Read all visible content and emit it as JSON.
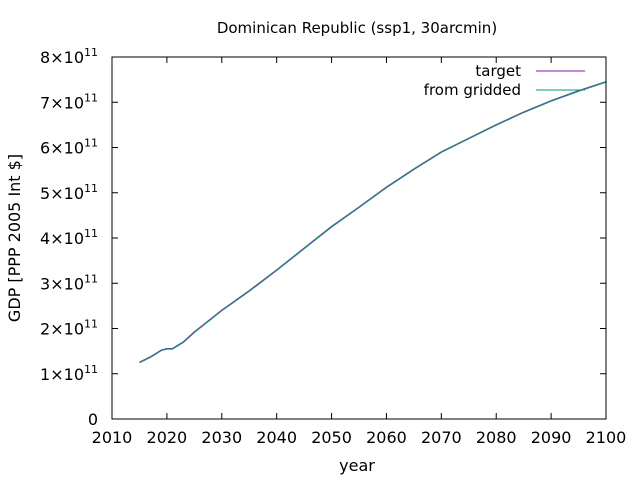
{
  "chart_data": {
    "type": "line",
    "title": "Dominican Republic (ssp1, 30arcmin)",
    "xlabel": "year",
    "ylabel": "GDP [PPP 2005 Int $]",
    "xlim": [
      2010,
      2100
    ],
    "ylim": [
      0,
      800000000000
    ],
    "x_ticks": [
      2010,
      2020,
      2030,
      2040,
      2050,
      2060,
      2070,
      2080,
      2090,
      2100
    ],
    "y_ticks": [
      {
        "value": 0,
        "label": "0",
        "exp": ""
      },
      {
        "value": 100000000000,
        "label": "1×10",
        "exp": "11"
      },
      {
        "value": 200000000000,
        "label": "2×10",
        "exp": "11"
      },
      {
        "value": 300000000000,
        "label": "3×10",
        "exp": "11"
      },
      {
        "value": 400000000000,
        "label": "4×10",
        "exp": "11"
      },
      {
        "value": 500000000000,
        "label": "5×10",
        "exp": "11"
      },
      {
        "value": 600000000000,
        "label": "6×10",
        "exp": "11"
      },
      {
        "value": 700000000000,
        "label": "7×10",
        "exp": "11"
      },
      {
        "value": 800000000000,
        "label": "8×10",
        "exp": "11"
      }
    ],
    "grid": false,
    "legend_position": "top-right",
    "x": [
      2015,
      2017,
      2019,
      2020,
      2021,
      2023,
      2025,
      2030,
      2035,
      2040,
      2045,
      2050,
      2055,
      2060,
      2065,
      2070,
      2075,
      2080,
      2085,
      2090,
      2095,
      2100
    ],
    "series": [
      {
        "name": "target",
        "color": "#8b1ab0",
        "values": [
          125000000000,
          137000000000,
          152000000000,
          155000000000,
          155000000000,
          170000000000,
          192000000000,
          240000000000,
          283000000000,
          329000000000,
          377000000000,
          425000000000,
          468000000000,
          512000000000,
          552000000000,
          590000000000,
          620000000000,
          650000000000,
          678000000000,
          703000000000,
          725000000000,
          745000000000
        ]
      },
      {
        "name": "from gridded",
        "color": "#009e73",
        "values": [
          125000000000,
          137000000000,
          152000000000,
          155000000000,
          155000000000,
          170000000000,
          192000000000,
          240000000000,
          283000000000,
          329000000000,
          377000000000,
          425000000000,
          468000000000,
          512000000000,
          552000000000,
          590000000000,
          620000000000,
          650000000000,
          678000000000,
          703000000000,
          725000000000,
          745000000000
        ]
      }
    ]
  }
}
